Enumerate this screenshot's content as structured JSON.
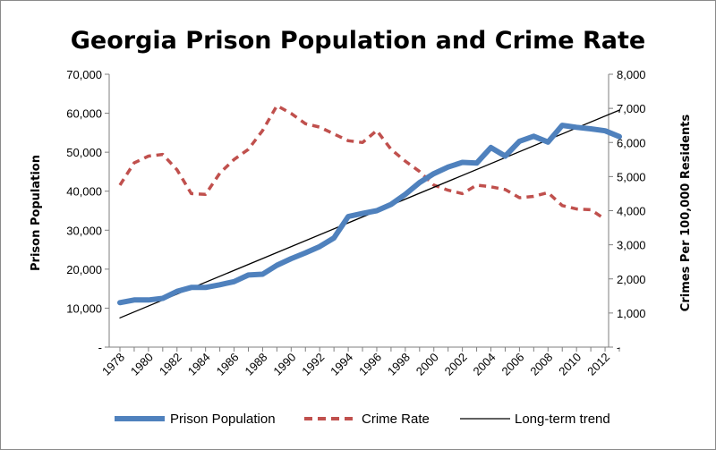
{
  "chart_data": {
    "type": "line",
    "title": "Georgia Prison Population and Crime Rate",
    "ylabel_left": "Prison Population",
    "ylabel_right": "Crimes Per 100,000 Residents",
    "ylim_left": [
      0,
      70000
    ],
    "ylim_right": [
      0,
      8000
    ],
    "yticks_left": [
      "-",
      "10,000",
      "20,000",
      "30,000",
      "40,000",
      "50,000",
      "60,000",
      "70,000"
    ],
    "yticks_right": [
      "-",
      "1,000",
      "2,000",
      "3,000",
      "4,000",
      "5,000",
      "6,000",
      "7,000",
      "8,000"
    ],
    "xlim": [
      1978,
      2013
    ],
    "xticks": [
      "1978",
      "1980",
      "1982",
      "1984",
      "1986",
      "1988",
      "1990",
      "1992",
      "1994",
      "1996",
      "1998",
      "2000",
      "2002",
      "2004",
      "2006",
      "2008",
      "2010",
      "2012"
    ],
    "series": [
      {
        "name": "Prison Population",
        "axis": "left",
        "color": "#4f81bd",
        "style": "solid-thick",
        "x": [
          1978,
          1979,
          1980,
          1981,
          1982,
          1983,
          1984,
          1985,
          1986,
          1987,
          1988,
          1989,
          1990,
          1991,
          1992,
          1993,
          1994,
          1995,
          1996,
          1997,
          1998,
          1999,
          2000,
          2001,
          2002,
          2003,
          2004,
          2005,
          2006,
          2007,
          2008,
          2009,
          2010,
          2011,
          2012,
          2013
        ],
        "values": [
          11400,
          12100,
          12100,
          12500,
          14300,
          15300,
          15300,
          16000,
          16800,
          18500,
          18700,
          21000,
          22700,
          24200,
          25800,
          28000,
          33500,
          34300,
          35000,
          36600,
          39200,
          42200,
          44500,
          46200,
          47400,
          47200,
          51200,
          49000,
          52800,
          54100,
          52600,
          56900,
          56400,
          56000,
          55500,
          54000
        ]
      },
      {
        "name": "Crime Rate",
        "axis": "right",
        "color": "#c0504d",
        "style": "dashed",
        "x": [
          1978,
          1979,
          1980,
          1981,
          1982,
          1983,
          1984,
          1985,
          1986,
          1987,
          1988,
          1989,
          1990,
          1991,
          1992,
          1993,
          1994,
          1995,
          1996,
          1997,
          1998,
          1999,
          2000,
          2001,
          2002,
          2003,
          2004,
          2005,
          2006,
          2007,
          2008,
          2009,
          2010,
          2011,
          2012
        ],
        "values": [
          4750,
          5400,
          5600,
          5650,
          5200,
          4500,
          4480,
          5100,
          5500,
          5800,
          6350,
          7080,
          6850,
          6550,
          6450,
          6250,
          6050,
          6000,
          6350,
          5800,
          5450,
          5150,
          4750,
          4600,
          4500,
          4750,
          4700,
          4620,
          4380,
          4420,
          4530,
          4150,
          4050,
          4030,
          3750
        ]
      },
      {
        "name": "Long-term trend",
        "axis": "left",
        "color": "#000000",
        "style": "solid-thin",
        "x": [
          1978,
          2013
        ],
        "values": [
          7500,
          60800
        ]
      }
    ],
    "legend": "bottom",
    "grid": false
  }
}
